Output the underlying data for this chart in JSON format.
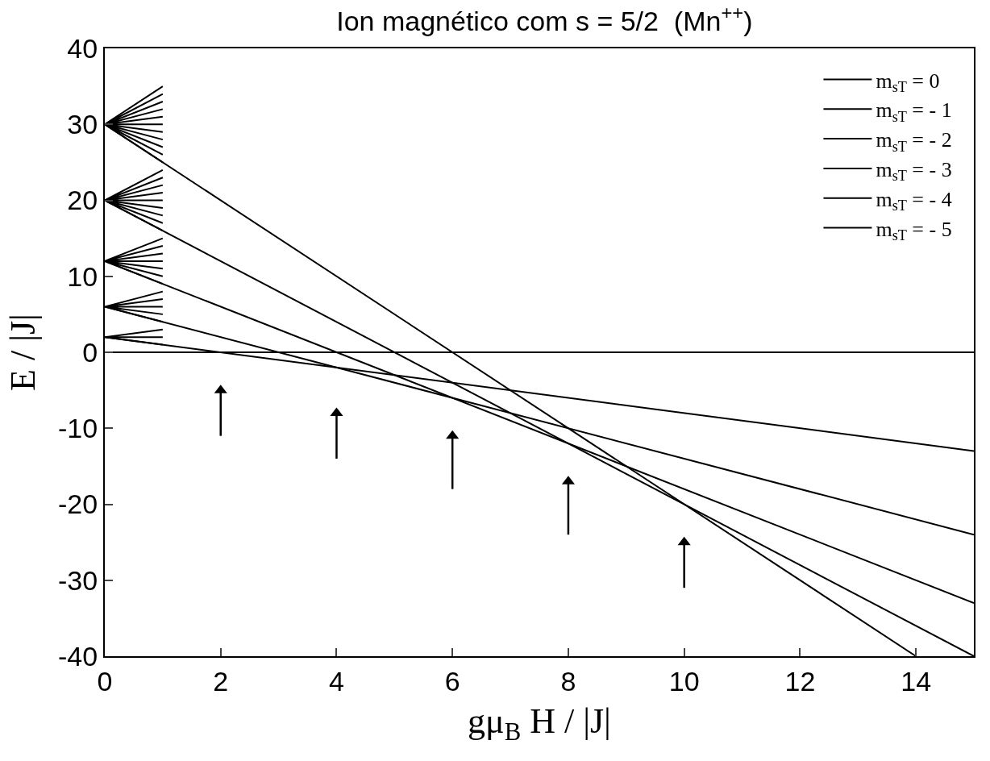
{
  "chart_data": {
    "type": "line",
    "title": "Ion magnético com s = 5/2  (Mn$^{++}$)",
    "xlabel": "gμ$_{B}$ H / |J|",
    "ylabel": "E / |J|",
    "xlim": [
      0,
      15
    ],
    "ylim": [
      -40,
      40
    ],
    "xticks": [
      0,
      2,
      4,
      6,
      8,
      10,
      12,
      14
    ],
    "yticks": [
      -40,
      -30,
      -20,
      -10,
      0,
      10,
      20,
      30,
      40
    ],
    "legend": "top right",
    "marker": "none",
    "line_style": "solid",
    "series": [
      {
        "name": "m$_{sT}$ = 0",
        "color": "#000000",
        "x": [
          0,
          15
        ],
        "values": [
          0,
          0
        ]
      },
      {
        "name": "m$_{sT}$ = - 1",
        "color": "#000000",
        "x": [
          0,
          15
        ],
        "values": [
          2,
          -13
        ]
      },
      {
        "name": "m$_{sT}$ = - 2",
        "color": "#000000",
        "x": [
          0,
          15
        ],
        "values": [
          6,
          -24
        ]
      },
      {
        "name": "m$_{sT}$ = - 3",
        "color": "#000000",
        "x": [
          0,
          15
        ],
        "values": [
          12,
          -33
        ]
      },
      {
        "name": "m$_{sT}$ = - 4",
        "color": "#000000",
        "x": [
          0,
          15
        ],
        "values": [
          20,
          -40
        ]
      },
      {
        "name": "m$_{sT}$ = - 5",
        "color": "#000000",
        "x": [
          0,
          14
        ],
        "values": [
          30,
          -40
        ]
      },
      {
        "color": "#000000",
        "x": [
          0,
          1,
          0,
          1,
          0,
          1
        ],
        "values": [
          2,
          3,
          2,
          2,
          2,
          1
        ]
      },
      {
        "color": "#000000",
        "x": [
          0,
          1,
          0,
          1,
          0,
          1,
          0,
          1,
          0,
          1
        ],
        "values": [
          6,
          8,
          6,
          7,
          6,
          6,
          6,
          5,
          6,
          4
        ]
      },
      {
        "color": "#000000",
        "x": [
          0,
          1,
          0,
          1,
          0,
          1,
          0,
          1,
          0,
          1,
          0,
          1,
          0,
          1
        ],
        "values": [
          12,
          15,
          12,
          14,
          12,
          13,
          12,
          12,
          12,
          11,
          12,
          10,
          12,
          9
        ]
      },
      {
        "color": "#000000",
        "x": [
          0,
          1,
          0,
          1,
          0,
          1,
          0,
          1,
          0,
          1,
          0,
          1,
          0,
          1,
          0,
          1,
          0,
          1
        ],
        "values": [
          20,
          24,
          20,
          23,
          20,
          22,
          20,
          21,
          20,
          20,
          20,
          19,
          20,
          18,
          20,
          17,
          20,
          16
        ]
      },
      {
        "color": "#000000",
        "x": [
          0,
          1,
          0,
          1,
          0,
          1,
          0,
          1,
          0,
          1,
          0,
          1,
          0,
          1,
          0,
          1,
          0,
          1,
          0,
          1,
          0,
          1
        ],
        "values": [
          30,
          35,
          30,
          34,
          30,
          33,
          30,
          32,
          30,
          31,
          30,
          30,
          30,
          29,
          30,
          28,
          30,
          27,
          30,
          26,
          30,
          25
        ]
      },
      {
        "type": "scatter",
        "marker": "triangle",
        "color": "#000000",
        "x": [
          2,
          4,
          6,
          8,
          10
        ],
        "values": [
          -5,
          -8,
          -11,
          -17,
          -25
        ],
        "errors": [
          [
            -11,
            -5
          ],
          [
            -14,
            -8
          ],
          [
            -18,
            -11
          ],
          [
            -24,
            -17
          ],
          [
            -31,
            -25
          ]
        ]
      }
    ]
  }
}
